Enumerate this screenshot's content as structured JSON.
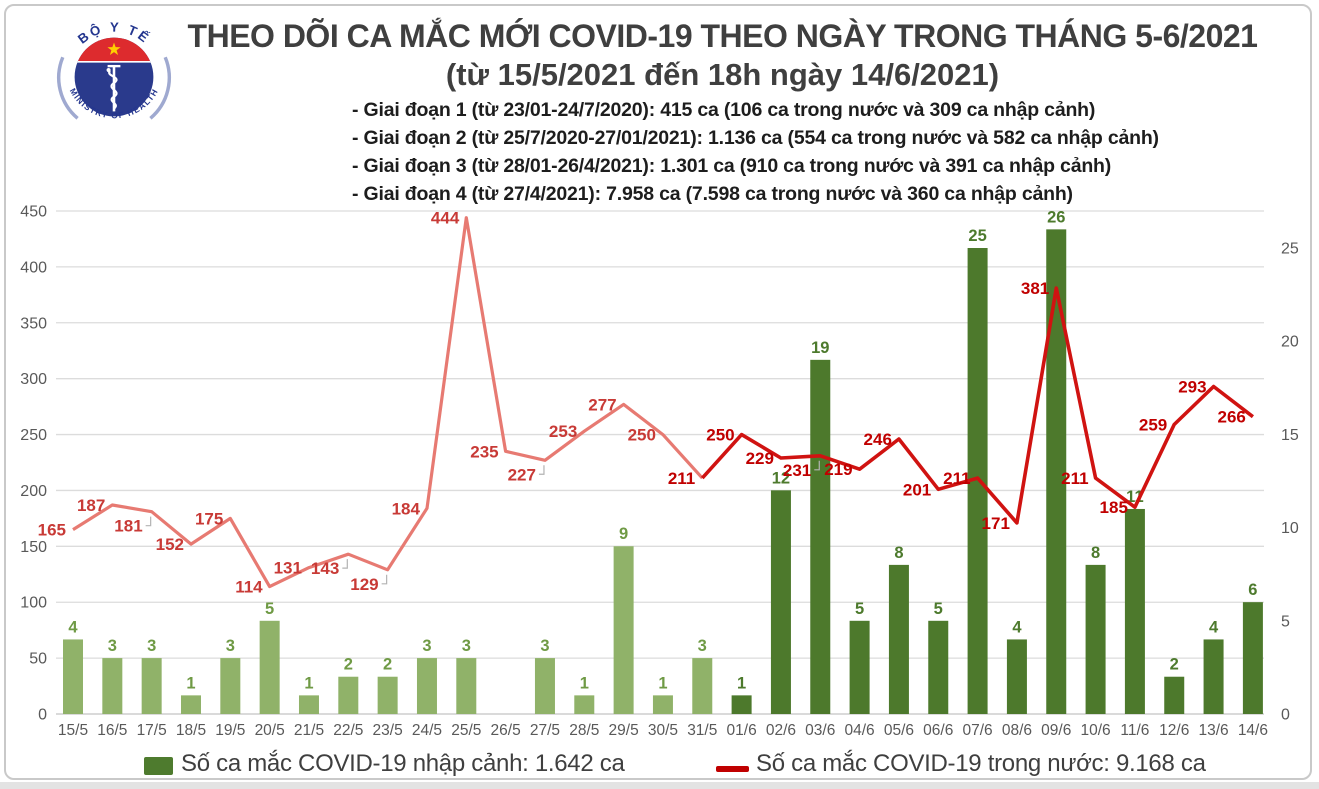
{
  "page": {
    "background": "#ffffff",
    "border_color": "#c9c9c9",
    "bottom_strip_color": "#e3e3e3"
  },
  "logo": {
    "top_text": "BỘ Y TẾ",
    "bottom_text": "MINISTRY OF HEALTH",
    "ring_text_color": "#24368f",
    "side_arc_color": "#9fa9d0",
    "red": "#dd2b2e",
    "blue": "#2a3a8c",
    "star": "#ffcf00"
  },
  "title": {
    "line1": "THEO DÕI CA MẮC MỚI COVID-19 THEO NGÀY TRONG THÁNG 5-6/2021",
    "line2": "(từ 15/5/2021 đến 18h ngày 14/6/2021)",
    "color": "#3f3f3f"
  },
  "phases": [
    "- Giai đoạn 1 (từ 23/01-24/7/2020): 415 ca (106 ca trong nước và 309 ca nhập cảnh)",
    "- Giai đoạn 2 (từ 25/7/2020-27/01/2021): 1.136 ca (554 ca trong nước và 582 ca nhập cảnh)",
    "- Giai đoạn 3 (từ 28/01-26/4/2021): 1.301 ca (910 ca trong nước và 391 ca nhập cảnh)",
    "- Giai đoạn 4 (từ 27/4/2021): 7.958 ca (7.598 ca trong nước và 360 ca nhập cảnh)"
  ],
  "legend": {
    "imported": {
      "label": "Số ca mắc COVID-19 nhập cảnh: 1.642 ca",
      "swatch": "#4e7b2e"
    },
    "domestic": {
      "label": "Số ca mắc COVID-19 trong nước: 9.168 ca",
      "swatch": "#c00000"
    }
  },
  "chart_data": {
    "type": "bar+line",
    "title": "Theo dõi ca mắc mới COVID-19 theo ngày trong tháng 5-6/2021",
    "categories": [
      "15/5",
      "16/5",
      "17/5",
      "18/5",
      "19/5",
      "20/5",
      "21/5",
      "22/5",
      "23/5",
      "24/5",
      "25/5",
      "26/5",
      "27/5",
      "28/5",
      "29/5",
      "30/5",
      "31/5",
      "01/6",
      "02/6",
      "03/6",
      "04/6",
      "05/6",
      "06/6",
      "07/6",
      "08/6",
      "09/6",
      "10/6",
      "11/6",
      "12/6",
      "13/6",
      "14/6"
    ],
    "series": [
      {
        "name": "Số ca mắc COVID-19 nhập cảnh",
        "type": "bar",
        "axis": "right",
        "values": [
          4,
          3,
          3,
          1,
          3,
          5,
          1,
          2,
          2,
          3,
          3,
          0,
          3,
          1,
          9,
          1,
          3,
          1,
          12,
          19,
          5,
          8,
          5,
          25,
          4,
          26,
          8,
          11,
          2,
          4,
          6
        ],
        "bar_color_may": "#90b269",
        "bar_color_june": "#4d792c",
        "label_color_may": "#6f9a45",
        "label_color_june": "#4d7a2d"
      },
      {
        "name": "Số ca mắc COVID-19 trong nước",
        "type": "line",
        "axis": "left",
        "values": [
          165,
          187,
          181,
          152,
          175,
          114,
          131,
          143,
          129,
          184,
          444,
          235,
          227,
          253,
          277,
          250,
          211,
          250,
          229,
          231,
          219,
          246,
          201,
          211,
          171,
          381,
          211,
          185,
          259,
          293,
          266
        ],
        "line_color_may": "#e77a72",
        "line_color_june": "#d01311",
        "label_color_may": "#c83a36",
        "label_color_june": "#c00000"
      }
    ],
    "left_axis": {
      "min": 0,
      "max": 450,
      "step": 50,
      "tick_color": "#595959"
    },
    "right_axis": {
      "min": 0,
      "max": 25,
      "step": 5,
      "tick_color": "#595959"
    },
    "grid": true,
    "gridline_color": "#dcdcdc",
    "zeroline_color": "#c3c3c3",
    "legend_position": "bottom",
    "layout_hints": {
      "split_index": 16,
      "label_below_indices": [
        2,
        7,
        8,
        12,
        19
      ],
      "leader_color": "#b3b3b3"
    }
  }
}
